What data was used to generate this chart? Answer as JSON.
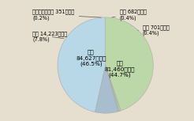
{
  "labels": [
    "窃盗",
    "恐喝",
    "強盗",
    "占有離脱物横領",
    "横領",
    "詐欺"
  ],
  "values": [
    81460,
    701,
    682,
    351,
    14223,
    84627
  ],
  "pct_labels": [
    "(44.7%)",
    "(0.4%)",
    "(0.4%)",
    "(0.2%)",
    "(7.8%)",
    "(46.5%)"
  ],
  "amt_labels": [
    "81,460百万円",
    "701百万円",
    "682百万円",
    "351百万円",
    "14,223百万円",
    "84,627百万円"
  ],
  "slice_colors": [
    "#bdd8a8",
    "#bdd8a8",
    "#bdd8a8",
    "#bdd8a8",
    "#a8bece",
    "#b8d8e8"
  ],
  "background_color": "#e6dece",
  "startangle": 90,
  "font_size": 5.2
}
